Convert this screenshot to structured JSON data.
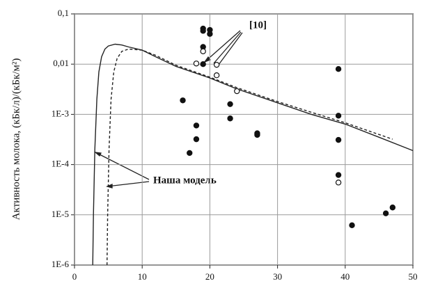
{
  "chart_data": {
    "type": "scatter",
    "y_label": "Активность молока,  (кБк/л)/(кБк/м²)",
    "log_y": true,
    "grid": true,
    "xlim": [
      0,
      50
    ],
    "xticks": [
      0,
      10,
      20,
      30,
      40,
      50
    ],
    "ylim": [
      1e-06,
      0.1
    ],
    "yticks": [
      {
        "value": 1e-06,
        "label": "1E-6"
      },
      {
        "value": 1e-05,
        "label": "1E-5"
      },
      {
        "value": 0.0001,
        "label": "1E-4"
      },
      {
        "value": 0.001,
        "label": "1E-3"
      },
      {
        "value": 0.01,
        "label": "0,01"
      },
      {
        "value": 0.1,
        "label": "0,1"
      }
    ],
    "annotations": [
      "[10]",
      "Наша модель"
    ],
    "series": [
      {
        "kind": "line",
        "style": "solid",
        "color": "#222",
        "x": [
          2.7,
          2.8,
          3,
          3.3,
          3.6,
          4,
          4.5,
          5,
          6,
          7,
          8,
          10,
          12,
          15,
          20,
          24,
          30,
          35,
          40,
          45,
          50
        ],
        "values": [
          1e-06,
          1e-05,
          0.0002,
          0.002,
          0.007,
          0.014,
          0.02,
          0.023,
          0.025,
          0.024,
          0.022,
          0.019,
          0.014,
          0.009,
          0.0053,
          0.0032,
          0.0017,
          0.001,
          0.00064,
          0.00035,
          0.00019
        ]
      },
      {
        "kind": "line",
        "style": "dashed",
        "color": "#222",
        "x": [
          4.8,
          4.9,
          5.1,
          5.4,
          5.8,
          6.3,
          7,
          8,
          10,
          12,
          15,
          20,
          24,
          30,
          35,
          40,
          47
        ],
        "values": [
          1e-06,
          1e-05,
          0.0002,
          0.002,
          0.007,
          0.013,
          0.018,
          0.02,
          0.019,
          0.015,
          0.0095,
          0.0055,
          0.0034,
          0.0018,
          0.0011,
          0.00068,
          0.00032
        ]
      },
      {
        "kind": "scatter",
        "marker": "filled",
        "color": "#111",
        "x": [
          16,
          17,
          18,
          18,
          19,
          19,
          19,
          19,
          20,
          20,
          23,
          23,
          27,
          27,
          39,
          39,
          39,
          39,
          41,
          46,
          47
        ],
        "values": [
          0.0019,
          0.00017,
          0.0006,
          0.00032,
          0.051,
          0.046,
          0.022,
          0.01,
          0.048,
          0.04,
          0.0016,
          0.00083,
          0.00042,
          0.00039,
          0.008,
          0.00094,
          0.00031,
          6.2e-05,
          6.2e-06,
          1.07e-05,
          1.4e-05
        ]
      },
      {
        "kind": "scatter",
        "marker": "open",
        "color": "#111",
        "x": [
          18,
          19,
          21,
          21,
          24,
          39
        ],
        "values": [
          0.0103,
          0.018,
          0.0097,
          0.006,
          0.0029,
          4.4e-05
        ]
      }
    ]
  }
}
